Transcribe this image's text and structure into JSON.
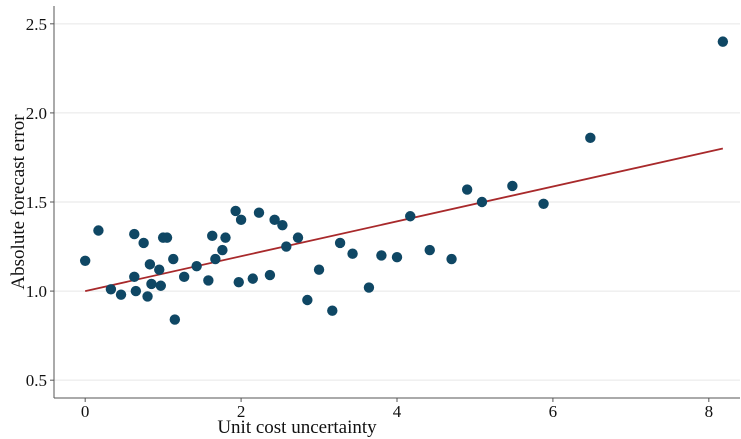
{
  "chart_data": {
    "type": "scatter",
    "xlabel": "Unit cost uncertainty",
    "ylabel": "Absolute forecast error",
    "xlim": [
      -0.4,
      8.4
    ],
    "ylim": [
      0.4,
      2.6
    ],
    "xticks": [
      0,
      2,
      4,
      6,
      8
    ],
    "yticks": [
      0.5,
      1.0,
      1.5,
      2.0,
      2.5
    ],
    "xtick_labels": [
      "0",
      "2",
      "4",
      "6",
      "8"
    ],
    "ytick_labels": [
      "0.5",
      "1.0",
      "1.5",
      "2.0",
      "2.5"
    ],
    "grid": "horizontal",
    "colors": {
      "points": "#0f4764",
      "fit_line": "#a8292b",
      "grid": "#e6e6e6",
      "axis": "#555555"
    },
    "points": [
      {
        "x": 0.0,
        "y": 1.17
      },
      {
        "x": 0.17,
        "y": 1.34
      },
      {
        "x": 0.33,
        "y": 1.01
      },
      {
        "x": 0.46,
        "y": 0.98
      },
      {
        "x": 0.63,
        "y": 1.32
      },
      {
        "x": 0.63,
        "y": 1.08
      },
      {
        "x": 0.65,
        "y": 1.0
      },
      {
        "x": 0.75,
        "y": 1.27
      },
      {
        "x": 0.8,
        "y": 0.97
      },
      {
        "x": 0.83,
        "y": 1.15
      },
      {
        "x": 0.85,
        "y": 1.04
      },
      {
        "x": 0.95,
        "y": 1.12
      },
      {
        "x": 0.97,
        "y": 1.03
      },
      {
        "x": 1.0,
        "y": 1.3
      },
      {
        "x": 1.05,
        "y": 1.3
      },
      {
        "x": 1.13,
        "y": 1.18
      },
      {
        "x": 1.15,
        "y": 0.84
      },
      {
        "x": 1.27,
        "y": 1.08
      },
      {
        "x": 1.43,
        "y": 1.14
      },
      {
        "x": 1.58,
        "y": 1.06
      },
      {
        "x": 1.63,
        "y": 1.31
      },
      {
        "x": 1.67,
        "y": 1.18
      },
      {
        "x": 1.76,
        "y": 1.23
      },
      {
        "x": 1.8,
        "y": 1.3
      },
      {
        "x": 1.93,
        "y": 1.45
      },
      {
        "x": 1.97,
        "y": 1.05
      },
      {
        "x": 2.0,
        "y": 1.4
      },
      {
        "x": 2.15,
        "y": 1.07
      },
      {
        "x": 2.23,
        "y": 1.44
      },
      {
        "x": 2.37,
        "y": 1.09
      },
      {
        "x": 2.43,
        "y": 1.4
      },
      {
        "x": 2.53,
        "y": 1.37
      },
      {
        "x": 2.58,
        "y": 1.25
      },
      {
        "x": 2.73,
        "y": 1.3
      },
      {
        "x": 2.85,
        "y": 0.95
      },
      {
        "x": 3.0,
        "y": 1.12
      },
      {
        "x": 3.17,
        "y": 0.89
      },
      {
        "x": 3.27,
        "y": 1.27
      },
      {
        "x": 3.43,
        "y": 1.21
      },
      {
        "x": 3.64,
        "y": 1.02
      },
      {
        "x": 3.8,
        "y": 1.2
      },
      {
        "x": 4.0,
        "y": 1.19
      },
      {
        "x": 4.17,
        "y": 1.42
      },
      {
        "x": 4.42,
        "y": 1.23
      },
      {
        "x": 4.7,
        "y": 1.18
      },
      {
        "x": 4.9,
        "y": 1.57
      },
      {
        "x": 5.09,
        "y": 1.5
      },
      {
        "x": 5.48,
        "y": 1.59
      },
      {
        "x": 5.88,
        "y": 1.49
      },
      {
        "x": 6.48,
        "y": 1.86
      },
      {
        "x": 8.18,
        "y": 2.4
      }
    ],
    "fit_line": {
      "x": [
        0.0,
        8.18
      ],
      "y": [
        1.0,
        1.8
      ]
    }
  }
}
